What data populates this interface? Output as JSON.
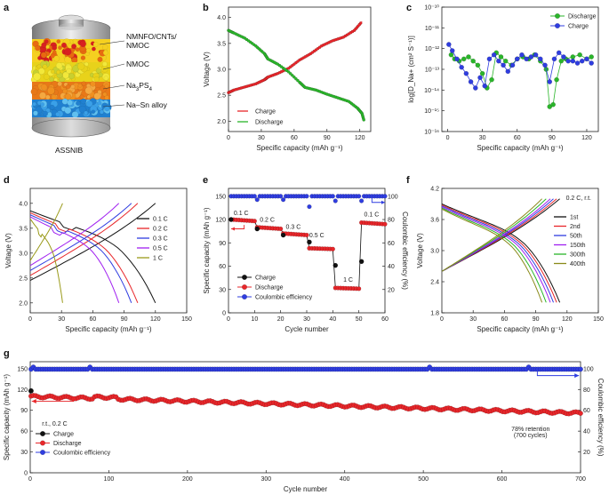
{
  "colors": {
    "red": "#e8262a",
    "green": "#2ab52a",
    "blue": "#2f3de0",
    "black": "#111111",
    "axis": "#222222"
  },
  "panel_letters": {
    "a": "a",
    "b": "b",
    "c": "c",
    "d": "d",
    "e": "e",
    "f": "f",
    "g": "g"
  },
  "panel_a": {
    "labels": [
      "NMNFO/CNTs/\nNMOC",
      "NMOC",
      "Na3PS4",
      "Na–Sn alloy"
    ],
    "caption": "ASSNIB"
  },
  "chart_data": [
    {
      "panel": "b",
      "type": "line",
      "xlabel": "Specific capacity (mAh g⁻¹)",
      "ylabel": "Voltage (V)",
      "xlim": [
        0,
        130
      ],
      "ylim": [
        1.8,
        4.2
      ],
      "xticks": [
        0,
        30,
        60,
        90,
        120
      ],
      "yticks": [
        2.0,
        2.5,
        3.0,
        3.5,
        4.0
      ],
      "xtick_labels": [
        "0",
        "30",
        "60",
        "90",
        "120"
      ],
      "ytick_labels": [
        "2.0",
        "2.5",
        "3.0",
        "3.5",
        "4.0"
      ],
      "legend": "bottom-left",
      "series": [
        {
          "name": "Charge",
          "color": "red",
          "x": [
            0,
            5,
            15,
            25,
            33,
            36,
            45,
            55,
            65,
            75,
            85,
            95,
            105,
            115,
            122
          ],
          "y": [
            2.55,
            2.6,
            2.66,
            2.72,
            2.8,
            2.85,
            2.92,
            3.02,
            3.18,
            3.3,
            3.45,
            3.55,
            3.62,
            3.75,
            3.92
          ]
        },
        {
          "name": "Discharge",
          "color": "green",
          "x": [
            0,
            5,
            15,
            25,
            33,
            36,
            45,
            55,
            65,
            70,
            80,
            90,
            100,
            110,
            118,
            122,
            124
          ],
          "y": [
            3.75,
            3.7,
            3.6,
            3.45,
            3.3,
            3.2,
            3.1,
            2.95,
            2.75,
            2.65,
            2.6,
            2.52,
            2.45,
            2.38,
            2.25,
            2.15,
            2.0
          ]
        }
      ]
    },
    {
      "panel": "c",
      "type": "scatter",
      "xlabel": "Specific capacity (mAh g⁻¹)",
      "ylabel": "log[D_Na+ (cm² S⁻¹)]",
      "xlim": [
        -5,
        130
      ],
      "ylim": [
        -16,
        -10
      ],
      "xticks": [
        0,
        30,
        60,
        90,
        120
      ],
      "yticks": [
        -16,
        -15,
        -14,
        -13,
        -12,
        -11,
        -10
      ],
      "xtick_labels": [
        "0",
        "30",
        "60",
        "90",
        "120"
      ],
      "ytick_labels": [
        "10⁻¹⁶",
        "10⁻¹⁵",
        "10⁻¹⁴",
        "10⁻¹³",
        "10⁻¹²",
        "10⁻¹¹",
        "10⁻¹⁰"
      ],
      "legend": "top-right",
      "series": [
        {
          "name": "Discharge",
          "color": "green",
          "x": [
            3,
            6,
            10,
            14,
            18,
            22,
            26,
            30,
            34,
            38,
            42,
            46,
            50,
            55,
            60,
            65,
            70,
            75,
            80,
            85,
            88,
            91,
            94,
            98,
            102,
            108,
            114,
            120,
            124
          ],
          "y": [
            -12.3,
            -12.5,
            -12.6,
            -12.5,
            -12.4,
            -12.6,
            -12.8,
            -13.2,
            -13.9,
            -13.5,
            -12.2,
            -12.4,
            -12.6,
            -12.8,
            -12.5,
            -12.4,
            -12.5,
            -12.3,
            -12.6,
            -13.0,
            -14.8,
            -14.7,
            -13.5,
            -12.6,
            -12.5,
            -12.4,
            -12.3,
            -12.5,
            -12.4
          ]
        },
        {
          "name": "Charge",
          "color": "blue",
          "x": [
            1,
            4,
            8,
            12,
            16,
            20,
            24,
            28,
            32,
            36,
            40,
            44,
            48,
            52,
            56,
            60,
            64,
            68,
            72,
            76,
            80,
            84,
            88,
            92,
            96,
            100,
            104,
            108,
            112,
            116,
            120,
            124
          ],
          "y": [
            -11.8,
            -12.1,
            -12.5,
            -12.9,
            -13.2,
            -13.6,
            -13.9,
            -13.4,
            -13.8,
            -12.5,
            -12.3,
            -12.6,
            -12.8,
            -13.1,
            -12.8,
            -12.5,
            -12.3,
            -12.5,
            -12.4,
            -12.3,
            -12.5,
            -12.8,
            -13.6,
            -12.5,
            -12.2,
            -12.4,
            -12.6,
            -12.6,
            -12.7,
            -12.6,
            -12.5,
            -12.7
          ]
        }
      ]
    },
    {
      "panel": "d",
      "type": "line",
      "xlabel": "Specific capacity (mAh g⁻¹)",
      "ylabel": "Voltage (V)",
      "xlim": [
        0,
        150
      ],
      "ylim": [
        1.8,
        4.3
      ],
      "xticks": [
        0,
        30,
        60,
        90,
        120,
        150
      ],
      "yticks": [
        2.0,
        2.5,
        3.0,
        3.5,
        4.0
      ],
      "xtick_labels": [
        "0",
        "30",
        "60",
        "90",
        "120",
        "150"
      ],
      "ytick_labels": [
        "2.0",
        "2.5",
        "3.0",
        "3.5",
        "4.0"
      ],
      "legend": "right",
      "series": [
        {
          "name": "0.1 C",
          "color": "#111111",
          "cap": 120
        },
        {
          "name": "0.2 C",
          "color": "#e8262a",
          "cap": 103
        },
        {
          "name": "0.3 C",
          "color": "#2f3de0",
          "cap": 97
        },
        {
          "name": "0.5 C",
          "color": "#a020f0",
          "cap": 85
        },
        {
          "name": "1 C",
          "color": "#9a9a1a",
          "cap": 31
        }
      ]
    },
    {
      "panel": "e",
      "type": "scatter",
      "xlabel": "Cycle number",
      "ylabel": "Specific capacity (mAh g⁻¹)",
      "y2label": "Coulombic efficiency (%)",
      "xlim": [
        0,
        60
      ],
      "ylim": [
        0,
        160
      ],
      "y2lim": [
        0,
        106.7
      ],
      "xticks": [
        0,
        10,
        20,
        30,
        40,
        50,
        60
      ],
      "yticks": [
        0,
        30,
        60,
        90,
        120,
        150
      ],
      "y2ticks": [
        20,
        40,
        60,
        80,
        100
      ],
      "xtick_labels": [
        "0",
        "10",
        "20",
        "30",
        "40",
        "50",
        "60"
      ],
      "ytick_labels": [
        "0",
        "30",
        "60",
        "90",
        "120",
        "150"
      ],
      "y2tick_labels": [
        "20",
        "40",
        "60",
        "80",
        "100"
      ],
      "rate_labels": [
        "0.1 C",
        "0.2 C",
        "0.3 C",
        "0.5 C",
        "1 C",
        "0.1 C"
      ],
      "legend": "bottom-left",
      "series": [
        {
          "name": "Charge",
          "color": "black",
          "x": [
            1,
            11,
            21,
            31,
            41,
            51
          ],
          "y": [
            120,
            108,
            100,
            91,
            61,
            66
          ]
        },
        {
          "name": "Discharge",
          "color": "red",
          "segments": [
            [
              1,
              10,
              120,
              118
            ],
            [
              11,
              20,
              110,
              108
            ],
            [
              21,
              30,
              102,
              100
            ],
            [
              31,
              40,
              83,
              82
            ],
            [
              41,
              50,
              32,
              31
            ],
            [
              51,
              60,
              116,
              114
            ]
          ]
        },
        {
          "name": "Coulombic efficiency",
          "color": "blue",
          "value": 100,
          "dips": [
            [
              11,
              97
            ],
            [
              21,
              97
            ],
            [
              31,
              91
            ],
            [
              41,
              96
            ],
            [
              51,
              96
            ]
          ]
        }
      ]
    },
    {
      "panel": "f",
      "type": "line",
      "xlabel": "Specific capacity (mAh g⁻¹)",
      "ylabel": "Voltage (V)",
      "xlim": [
        0,
        150
      ],
      "ylim": [
        1.8,
        4.2
      ],
      "xticks": [
        0,
        30,
        60,
        90,
        120,
        150
      ],
      "yticks": [
        1.8,
        2.4,
        3.0,
        3.6,
        4.2
      ],
      "xtick_labels": [
        "0",
        "30",
        "60",
        "90",
        "120",
        "150"
      ],
      "ytick_labels": [
        "1.8",
        "2.4",
        "3.0",
        "3.6",
        "4.2"
      ],
      "annotation": "0.2 C, r.t.",
      "legend": "right",
      "series": [
        {
          "name": "1st",
          "color": "#111111",
          "cap": 113
        },
        {
          "name": "2nd",
          "color": "#e8262a",
          "cap": 110
        },
        {
          "name": "50th",
          "color": "#2f3de0",
          "cap": 107
        },
        {
          "name": "150th",
          "color": "#a020f0",
          "cap": 104
        },
        {
          "name": "300th",
          "color": "#2ab52a",
          "cap": 100
        },
        {
          "name": "400th",
          "color": "#8a8a1a",
          "cap": 96
        }
      ]
    },
    {
      "panel": "g",
      "type": "scatter",
      "xlabel": "Cycle number",
      "ylabel": "Specific capacity (mAh g⁻¹)",
      "y2label": "Coulombic efficiency (%)",
      "xlim": [
        0,
        700
      ],
      "ylim": [
        0,
        160
      ],
      "y2lim": [
        0,
        106.7
      ],
      "xticks": [
        0,
        100,
        200,
        300,
        400,
        500,
        600,
        700
      ],
      "yticks": [
        0,
        30,
        60,
        90,
        120,
        150
      ],
      "y2ticks": [
        20,
        40,
        60,
        80,
        100
      ],
      "xtick_labels": [
        "0",
        "100",
        "200",
        "300",
        "400",
        "500",
        "600",
        "700"
      ],
      "ytick_labels": [
        "0",
        "30",
        "60",
        "90",
        "120",
        "150"
      ],
      "y2tick_labels": [
        "20",
        "40",
        "60",
        "80",
        "100"
      ],
      "annotations": [
        "r.t., 0.2 C",
        "78% retention",
        "(700 cycles)"
      ],
      "legend": "bottom-left",
      "series": [
        {
          "name": "Charge",
          "color": "black",
          "start": 118
        },
        {
          "name": "Discharge",
          "color": "red",
          "start": 110,
          "end": 86
        },
        {
          "name": "Coulombic efficiency",
          "color": "blue",
          "value": 99.5
        }
      ]
    }
  ]
}
